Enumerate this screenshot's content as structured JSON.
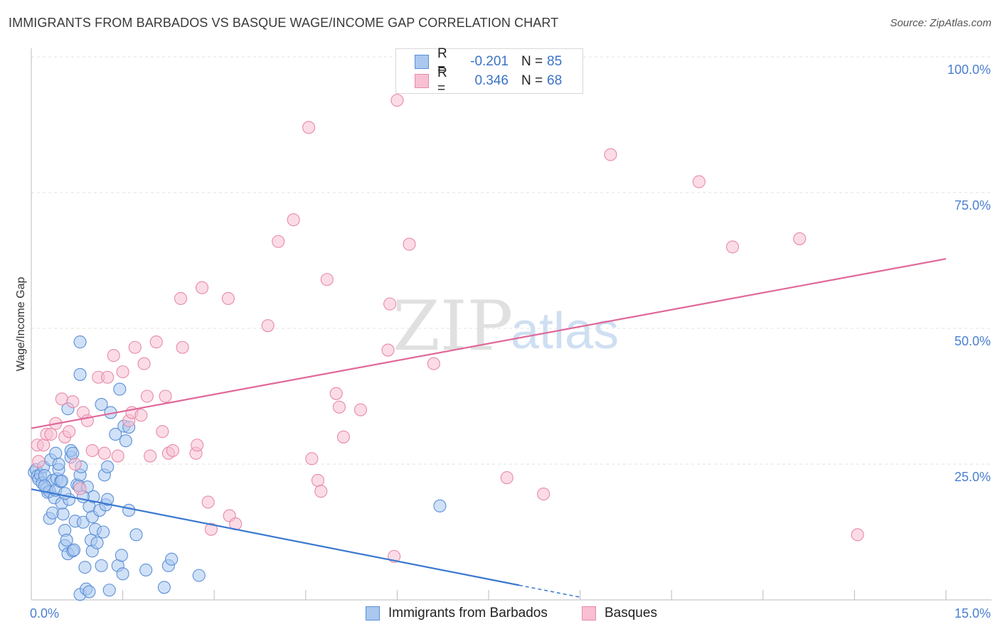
{
  "header": {
    "title": "IMMIGRANTS FROM BARBADOS VS BASQUE WAGE/INCOME GAP CORRELATION CHART",
    "source": "Source: ZipAtlas.com"
  },
  "legend": {
    "rows": [
      {
        "r_label": "R =",
        "r_value": "-0.201",
        "n_label": "N =",
        "n_value": "85",
        "fill": "#aac8f0",
        "stroke": "#5b8fd6"
      },
      {
        "r_label": "R =",
        "r_value": "0.346",
        "n_label": "N =",
        "n_value": "68",
        "fill": "#f8c0d2",
        "stroke": "#e889a8"
      }
    ]
  },
  "bottom_legend": [
    {
      "label": "Immigrants from Barbados",
      "fill": "#aac8f0",
      "stroke": "#5b8fd6"
    },
    {
      "label": "Basques",
      "fill": "#f8c0d2",
      "stroke": "#e889a8"
    }
  ],
  "watermark": {
    "zip": "ZIP",
    "atlas": "atlas"
  },
  "chart_data": {
    "type": "scatter",
    "title": "IMMIGRANTS FROM BARBADOS VS BASQUE WAGE/INCOME GAP CORRELATION CHART",
    "xlabel": "",
    "ylabel": "Wage/Income Gap",
    "xlim": [
      0,
      15
    ],
    "ylim": [
      0,
      100
    ],
    "x_tick_labels": [
      {
        "value": 0,
        "label": "0.0%"
      },
      {
        "value": 15,
        "label": "15.0%"
      }
    ],
    "y_tick_labels": [
      {
        "value": 25,
        "label": "25.0%"
      },
      {
        "value": 50,
        "label": "50.0%"
      },
      {
        "value": 75,
        "label": "75.0%"
      },
      {
        "value": 100,
        "label": "100.0%"
      }
    ],
    "grid": true,
    "series": [
      {
        "name": "Immigrants from Barbados",
        "color": "#5b8fd6",
        "fill": "#aac8f0",
        "trend": {
          "x": [
            0.0,
            8.0
          ],
          "y": [
            20.4,
            2.7
          ],
          "dashed_to": [
            9.0,
            0.5
          ],
          "color": "#3a78d0"
        },
        "points": [
          [
            0.05,
            23.5
          ],
          [
            0.08,
            24.0
          ],
          [
            0.1,
            22.8
          ],
          [
            0.12,
            22.2
          ],
          [
            0.15,
            23.0
          ],
          [
            0.18,
            21.5
          ],
          [
            0.2,
            24.5
          ],
          [
            0.22,
            22.9
          ],
          [
            0.25,
            20.5
          ],
          [
            0.27,
            19.8
          ],
          [
            0.3,
            20.0
          ],
          [
            0.3,
            15.0
          ],
          [
            0.32,
            25.8
          ],
          [
            0.35,
            22.0
          ],
          [
            0.35,
            16.0
          ],
          [
            0.38,
            18.8
          ],
          [
            0.4,
            20.2
          ],
          [
            0.4,
            27.0
          ],
          [
            0.42,
            22.3
          ],
          [
            0.45,
            24.0
          ],
          [
            0.48,
            21.8
          ],
          [
            0.5,
            17.8
          ],
          [
            0.5,
            21.9
          ],
          [
            0.52,
            15.8
          ],
          [
            0.55,
            10.0
          ],
          [
            0.55,
            12.8
          ],
          [
            0.58,
            11.0
          ],
          [
            0.6,
            35.2
          ],
          [
            0.6,
            8.5
          ],
          [
            0.62,
            18.5
          ],
          [
            0.65,
            26.3
          ],
          [
            0.65,
            27.5
          ],
          [
            0.68,
            9.0
          ],
          [
            0.7,
            9.2
          ],
          [
            0.72,
            14.5
          ],
          [
            0.75,
            21.2
          ],
          [
            0.78,
            21.0
          ],
          [
            0.8,
            1.0
          ],
          [
            0.8,
            23.0
          ],
          [
            0.82,
            24.5
          ],
          [
            0.85,
            14.3
          ],
          [
            0.8,
            41.5
          ],
          [
            0.8,
            47.5
          ],
          [
            0.88,
            6.0
          ],
          [
            0.9,
            2.0
          ],
          [
            0.92,
            20.8
          ],
          [
            0.95,
            1.5
          ],
          [
            0.95,
            17.2
          ],
          [
            0.98,
            11.0
          ],
          [
            1.0,
            9.0
          ],
          [
            1.0,
            15.3
          ],
          [
            1.02,
            19.0
          ],
          [
            1.05,
            13.0
          ],
          [
            1.08,
            10.5
          ],
          [
            1.12,
            16.5
          ],
          [
            1.15,
            36.0
          ],
          [
            1.15,
            6.3
          ],
          [
            1.18,
            12.5
          ],
          [
            1.2,
            23.0
          ],
          [
            1.22,
            17.5
          ],
          [
            1.25,
            24.5
          ],
          [
            1.28,
            1.8
          ],
          [
            1.3,
            34.5
          ],
          [
            1.38,
            30.5
          ],
          [
            1.42,
            6.3
          ],
          [
            1.45,
            38.8
          ],
          [
            1.48,
            8.2
          ],
          [
            1.5,
            4.8
          ],
          [
            1.52,
            32.0
          ],
          [
            1.55,
            29.3
          ],
          [
            1.6,
            16.5
          ],
          [
            1.6,
            31.8
          ],
          [
            1.72,
            12.0
          ],
          [
            1.88,
            5.5
          ],
          [
            2.18,
            2.3
          ],
          [
            2.25,
            6.3
          ],
          [
            2.3,
            7.5
          ],
          [
            2.75,
            4.5
          ],
          [
            6.7,
            17.3
          ],
          [
            0.55,
            19.6
          ],
          [
            0.45,
            25.0
          ],
          [
            0.68,
            27.0
          ],
          [
            0.85,
            19.0
          ],
          [
            1.25,
            18.5
          ],
          [
            0.22,
            21.0
          ]
        ]
      },
      {
        "name": "Basques",
        "color": "#e889a8",
        "fill": "#f8c0d2",
        "trend": {
          "x": [
            0.0,
            15.0
          ],
          "y": [
            31.6,
            62.8
          ],
          "color": "#e0679a"
        },
        "points": [
          [
            0.1,
            28.5
          ],
          [
            0.12,
            25.5
          ],
          [
            0.2,
            28.5
          ],
          [
            0.25,
            30.5
          ],
          [
            0.32,
            30.5
          ],
          [
            0.4,
            32.5
          ],
          [
            0.5,
            37.0
          ],
          [
            0.55,
            30.0
          ],
          [
            0.62,
            31.0
          ],
          [
            0.68,
            36.5
          ],
          [
            0.72,
            25.0
          ],
          [
            0.8,
            20.5
          ],
          [
            0.85,
            34.5
          ],
          [
            0.92,
            33.0
          ],
          [
            1.0,
            27.5
          ],
          [
            1.1,
            41.0
          ],
          [
            1.2,
            27.0
          ],
          [
            1.25,
            41.0
          ],
          [
            1.35,
            45.0
          ],
          [
            1.42,
            26.5
          ],
          [
            1.5,
            42.0
          ],
          [
            1.6,
            33.0
          ],
          [
            1.65,
            34.5
          ],
          [
            1.7,
            46.5
          ],
          [
            1.8,
            34.0
          ],
          [
            1.85,
            43.5
          ],
          [
            1.9,
            37.5
          ],
          [
            1.95,
            26.5
          ],
          [
            2.05,
            47.5
          ],
          [
            2.15,
            31.0
          ],
          [
            2.2,
            37.5
          ],
          [
            2.25,
            27.0
          ],
          [
            2.32,
            27.5
          ],
          [
            2.45,
            55.5
          ],
          [
            2.48,
            46.5
          ],
          [
            2.7,
            27.0
          ],
          [
            2.72,
            28.5
          ],
          [
            2.8,
            57.5
          ],
          [
            2.9,
            18.0
          ],
          [
            2.95,
            13.0
          ],
          [
            3.23,
            55.5
          ],
          [
            3.25,
            15.5
          ],
          [
            3.35,
            14.0
          ],
          [
            3.88,
            50.5
          ],
          [
            4.05,
            66.0
          ],
          [
            4.3,
            70.0
          ],
          [
            4.55,
            87.0
          ],
          [
            4.6,
            26.0
          ],
          [
            4.7,
            22.0
          ],
          [
            4.75,
            20.0
          ],
          [
            4.85,
            59.0
          ],
          [
            5.0,
            38.0
          ],
          [
            5.05,
            35.5
          ],
          [
            5.12,
            30.0
          ],
          [
            5.4,
            35.0
          ],
          [
            5.85,
            46.0
          ],
          [
            5.88,
            54.5
          ],
          [
            5.95,
            8.0
          ],
          [
            6.0,
            92.0
          ],
          [
            6.2,
            65.5
          ],
          [
            6.6,
            43.5
          ],
          [
            7.8,
            22.5
          ],
          [
            8.4,
            19.5
          ],
          [
            9.5,
            82.0
          ],
          [
            10.95,
            77.0
          ],
          [
            11.5,
            65.0
          ],
          [
            12.6,
            66.5
          ],
          [
            13.55,
            12.0
          ]
        ]
      }
    ]
  }
}
